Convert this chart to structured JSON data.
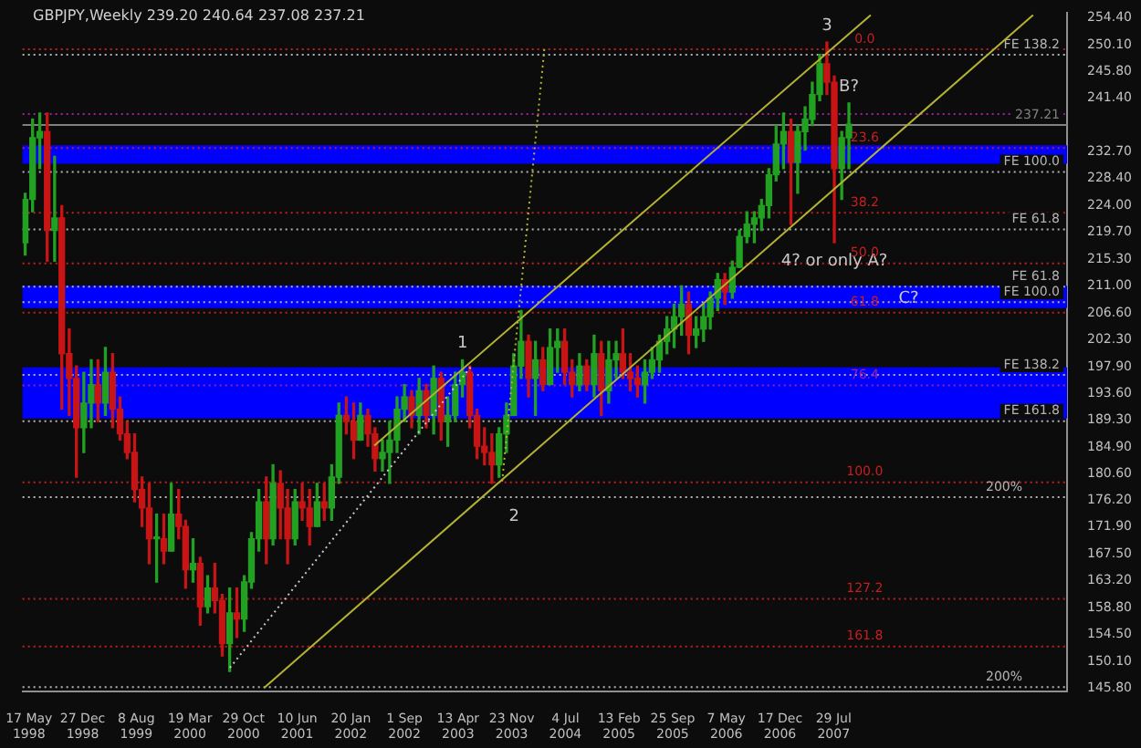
{
  "chart_data": {
    "type": "candlestick",
    "title": "GBPJPY,Weekly 239.20 240.64 237.08 237.21",
    "x": [
      "1998-05",
      "1998-06",
      "1998-07",
      "1998-08",
      "1998-09",
      "1998-10",
      "1998-11",
      "1998-12",
      "1999-01",
      "1999-02",
      "1999-03",
      "1999-04",
      "1999-05",
      "1999-06",
      "1999-07",
      "1999-08",
      "1999-09",
      "1999-10",
      "1999-11",
      "1999-12",
      "2000-01",
      "2000-02",
      "2000-03",
      "2000-04",
      "2000-05",
      "2000-06",
      "2000-07",
      "2000-08",
      "2000-09",
      "2000-10",
      "2000-11",
      "2000-12",
      "2001-01",
      "2001-02",
      "2001-03",
      "2001-04",
      "2001-05",
      "2001-06",
      "2001-07",
      "2001-08",
      "2001-09",
      "2001-10",
      "2001-11",
      "2001-12",
      "2002-01",
      "2002-02",
      "2002-03",
      "2002-04",
      "2002-05",
      "2002-06",
      "2002-07",
      "2002-08",
      "2002-09",
      "2002-10",
      "2002-11",
      "2002-12",
      "2003-01",
      "2003-02",
      "2003-03",
      "2003-04",
      "2003-05",
      "2003-06",
      "2003-07",
      "2003-08",
      "2003-09",
      "2003-10",
      "2003-11",
      "2003-12",
      "2004-01",
      "2004-02",
      "2004-03",
      "2004-04",
      "2004-05",
      "2004-06",
      "2004-07",
      "2004-08",
      "2004-09",
      "2004-10",
      "2004-11",
      "2004-12",
      "2005-01",
      "2005-02",
      "2005-03",
      "2005-04",
      "2005-05",
      "2005-06",
      "2005-07",
      "2005-08",
      "2005-09",
      "2005-10",
      "2005-11",
      "2005-12",
      "2006-01",
      "2006-02",
      "2006-03",
      "2006-04",
      "2006-05",
      "2006-06",
      "2006-07",
      "2006-08",
      "2006-09",
      "2006-10",
      "2006-11",
      "2006-12",
      "2007-01",
      "2007-02",
      "2007-03",
      "2007-04",
      "2007-05",
      "2007-06",
      "2007-07",
      "2007-08",
      "2007-09",
      "2007-10"
    ],
    "ohlc": [
      [
        218,
        226,
        216,
        225
      ],
      [
        225,
        238,
        223,
        235
      ],
      [
        235,
        239,
        230,
        236
      ],
      [
        236,
        239,
        215,
        220
      ],
      [
        220,
        232,
        215,
        222
      ],
      [
        222,
        224,
        191,
        200
      ],
      [
        200,
        204,
        190,
        196
      ],
      [
        196,
        198,
        180,
        188
      ],
      [
        188,
        197,
        184,
        192
      ],
      [
        192,
        199,
        188,
        195
      ],
      [
        195,
        199,
        189,
        192
      ],
      [
        192,
        201,
        190,
        197
      ],
      [
        197,
        200,
        188,
        191
      ],
      [
        191,
        193,
        186,
        187
      ],
      [
        187,
        189,
        183,
        184
      ],
      [
        184,
        187,
        176,
        178
      ],
      [
        178,
        180,
        172,
        175
      ],
      [
        175,
        179,
        166,
        170
      ],
      [
        170,
        174,
        163,
        170
      ],
      [
        170,
        174,
        166,
        168
      ],
      [
        168,
        179,
        168,
        174
      ],
      [
        174,
        178,
        170,
        172
      ],
      [
        172,
        173,
        162,
        165
      ],
      [
        165,
        170,
        163,
        166
      ],
      [
        166,
        167,
        156,
        159
      ],
      [
        159,
        164,
        158,
        162
      ],
      [
        162,
        166,
        158,
        160
      ],
      [
        160,
        161,
        151,
        153
      ],
      [
        153,
        162,
        148.5,
        158
      ],
      [
        158,
        162,
        154,
        157
      ],
      [
        157,
        164,
        155,
        163
      ],
      [
        163,
        171,
        162,
        170
      ],
      [
        170,
        178,
        168,
        176
      ],
      [
        176,
        180,
        166,
        170
      ],
      [
        170,
        182,
        169,
        179
      ],
      [
        179,
        181,
        170,
        175
      ],
      [
        175,
        178,
        166,
        170
      ],
      [
        170,
        178,
        169,
        176
      ],
      [
        176,
        179,
        173,
        175
      ],
      [
        175,
        178,
        169,
        172
      ],
      [
        172,
        179,
        172,
        176
      ],
      [
        176,
        179,
        173,
        175
      ],
      [
        175,
        182,
        173,
        180
      ],
      [
        180,
        192,
        179,
        190
      ],
      [
        190,
        193,
        187,
        189
      ],
      [
        189,
        192,
        183,
        186
      ],
      [
        186,
        192,
        186,
        190
      ],
      [
        190,
        191,
        185,
        187
      ],
      [
        187,
        188,
        181,
        183
      ],
      [
        183,
        186,
        181,
        184
      ],
      [
        184,
        189,
        179,
        186
      ],
      [
        186,
        193,
        184,
        191
      ],
      [
        191,
        195,
        189,
        193
      ],
      [
        193,
        194,
        188,
        190
      ],
      [
        190,
        196,
        187,
        194
      ],
      [
        194,
        195,
        188,
        190
      ],
      [
        190,
        198,
        187,
        196
      ],
      [
        196,
        197,
        186,
        189
      ],
      [
        189,
        193,
        185,
        190
      ],
      [
        190,
        197,
        189,
        195
      ],
      [
        195,
        199,
        193,
        197
      ],
      [
        197,
        198,
        188,
        190
      ],
      [
        190,
        191,
        183,
        185
      ],
      [
        185,
        188,
        182,
        184
      ],
      [
        184,
        187,
        179,
        182
      ],
      [
        182,
        188,
        180,
        187
      ],
      [
        187,
        192,
        184,
        190
      ],
      [
        190,
        200,
        190,
        198
      ],
      [
        198,
        207,
        196,
        202
      ],
      [
        202,
        203,
        193,
        196
      ],
      [
        196,
        202,
        190,
        199
      ],
      [
        199,
        201,
        194,
        195
      ],
      [
        195,
        204,
        195,
        201
      ],
      [
        201,
        204,
        197,
        202
      ],
      [
        202,
        204,
        195,
        197
      ],
      [
        197,
        199,
        193,
        195
      ],
      [
        195,
        200,
        194,
        198
      ],
      [
        198,
        199,
        194,
        195
      ],
      [
        195,
        203,
        193,
        200
      ],
      [
        200,
        202,
        190,
        194
      ],
      [
        194,
        202,
        192,
        199
      ],
      [
        199,
        202,
        196,
        200
      ],
      [
        200,
        204,
        196,
        197
      ],
      [
        197,
        200,
        194,
        196
      ],
      [
        196,
        198,
        193,
        195
      ],
      [
        195,
        199,
        192,
        197
      ],
      [
        197,
        201,
        196,
        199
      ],
      [
        199,
        203,
        197,
        202
      ],
      [
        202,
        206,
        200,
        204
      ],
      [
        204,
        208,
        201,
        206
      ],
      [
        206,
        211,
        203,
        208
      ],
      [
        208,
        210,
        200,
        203
      ],
      [
        203,
        206,
        201,
        204
      ],
      [
        204,
        208,
        202,
        206
      ],
      [
        206,
        210,
        204,
        209
      ],
      [
        209,
        213,
        207,
        212
      ],
      [
        212,
        213,
        208,
        210
      ],
      [
        210,
        215,
        209,
        214
      ],
      [
        214,
        220,
        214,
        219
      ],
      [
        219,
        223,
        218,
        221
      ],
      [
        221,
        223,
        218,
        222
      ],
      [
        222,
        225,
        220,
        224
      ],
      [
        224,
        230,
        222,
        229
      ],
      [
        229,
        237,
        228,
        234
      ],
      [
        234,
        239,
        230,
        236
      ],
      [
        236,
        238,
        221,
        231
      ],
      [
        231,
        237,
        226,
        236
      ],
      [
        236,
        240,
        233,
        238
      ],
      [
        238,
        244,
        237,
        242
      ],
      [
        242,
        248.5,
        241,
        247
      ],
      [
        247,
        250.5,
        242,
        244
      ],
      [
        244,
        245,
        218,
        230
      ],
      [
        230,
        236,
        225,
        235
      ],
      [
        235,
        240.64,
        230,
        237.21
      ]
    ],
    "colors": [
      "#22a022",
      "#22a022",
      "#22a022",
      "#c81414",
      "#22a022",
      "#c81414",
      "#c81414",
      "#c81414",
      "#22a022",
      "#22a022",
      "#c81414",
      "#22a022",
      "#c81414",
      "#c81414",
      "#c81414",
      "#c81414",
      "#c81414",
      "#c81414",
      "#22a022",
      "#c81414",
      "#22a022",
      "#c81414",
      "#c81414",
      "#22a022",
      "#c81414",
      "#22a022",
      "#c81414",
      "#c81414",
      "#22a022",
      "#c81414",
      "#22a022",
      "#22a022",
      "#22a022",
      "#c81414",
      "#22a022",
      "#c81414",
      "#c81414",
      "#22a022",
      "#c81414",
      "#c81414",
      "#22a022",
      "#c81414",
      "#22a022",
      "#22a022",
      "#c81414",
      "#c81414",
      "#22a022",
      "#c81414",
      "#c81414",
      "#22a022",
      "#22a022",
      "#22a022",
      "#22a022",
      "#c81414",
      "#22a022",
      "#c81414",
      "#22a022",
      "#c81414",
      "#22a022",
      "#22a022",
      "#22a022",
      "#c81414",
      "#c81414",
      "#c81414",
      "#c81414",
      "#22a022",
      "#22a022",
      "#22a022",
      "#22a022",
      "#c81414",
      "#22a022",
      "#c81414",
      "#22a022",
      "#22a022",
      "#c81414",
      "#c81414",
      "#22a022",
      "#c81414",
      "#22a022",
      "#c81414",
      "#22a022",
      "#22a022",
      "#c81414",
      "#c81414",
      "#c81414",
      "#22a022",
      "#22a022",
      "#22a022",
      "#22a022",
      "#22a022",
      "#22a022",
      "#c81414",
      "#22a022",
      "#22a022",
      "#22a022",
      "#22a022",
      "#c81414",
      "#22a022",
      "#22a022",
      "#22a022",
      "#22a022",
      "#22a022",
      "#22a022",
      "#22a022",
      "#22a022",
      "#c81414",
      "#22a022",
      "#22a022",
      "#22a022",
      "#22a022",
      "#c81414",
      "#c81414",
      "#22a022",
      "#22a022"
    ],
    "series": [
      {
        "type": "line",
        "color": "#b4b432",
        "line_style": "solid",
        "x": [
          "2002-04-28",
          "2007-12-31"
        ],
        "values": [
          185.1,
          254.9
        ]
      },
      {
        "type": "line",
        "color": "#b4b432",
        "line_style": "solid",
        "x": [
          "2001-01-22",
          "2009-11-08"
        ],
        "values": [
          145.8,
          254.9
        ]
      },
      {
        "type": "line",
        "color": "#c8c8c8",
        "line_style": "dotted",
        "x": [
          "2000-09-02",
          "2003-06-08"
        ],
        "values": [
          149.1,
          198.0
        ]
      },
      {
        "type": "line",
        "color": "#b4b432",
        "line_style": "dotted",
        "x": [
          "2003-10-14",
          "2004-04-08"
        ],
        "values": [
          179.3,
          249.7
        ]
      }
    ],
    "xlim": [
      "1998-04-20",
      "2010-03-30"
    ],
    "xticks": [
      {
        "value": "1998-05-17",
        "label": "17 May 1998"
      },
      {
        "value": "1998-12-27",
        "label": "27 Dec 1998"
      },
      {
        "value": "1999-08-08",
        "label": "8 Aug 1999"
      },
      {
        "value": "2000-03-19",
        "label": "19 Mar 2000"
      },
      {
        "value": "2000-10-29",
        "label": "29 Oct 2000"
      },
      {
        "value": "2001-06-10",
        "label": "10 Jun 2001"
      },
      {
        "value": "2002-01-20",
        "label": "20 Jan 2002"
      },
      {
        "value": "2002-09-01",
        "label": "1 Sep 2002"
      },
      {
        "value": "2003-04-13",
        "label": "13 Apr 2003"
      },
      {
        "value": "2003-11-23",
        "label": "23 Nov 2003"
      },
      {
        "value": "2004-07-04",
        "label": "4 Jul 2004"
      },
      {
        "value": "2005-02-13",
        "label": "13 Feb 2005"
      },
      {
        "value": "2005-09-25",
        "label": "25 Sep 2005"
      },
      {
        "value": "2006-05-07",
        "label": "7 May 2006"
      },
      {
        "value": "2006-12-17",
        "label": "17 Dec 2006"
      },
      {
        "value": "2007-07-29",
        "label": "29 Jul 2007"
      }
    ],
    "ylim": [
      145.2,
      255.2
    ],
    "yticks": [
      {
        "value": 145.8,
        "label": "145.80"
      },
      {
        "value": 150.1,
        "label": "150.10"
      },
      {
        "value": 154.5,
        "label": "154.50"
      },
      {
        "value": 158.8,
        "label": "158.80"
      },
      {
        "value": 163.2,
        "label": "163.20"
      },
      {
        "value": 167.5,
        "label": "167.50"
      },
      {
        "value": 171.9,
        "label": "171.90"
      },
      {
        "value": 176.2,
        "label": "176.20"
      },
      {
        "value": 180.6,
        "label": "180.60"
      },
      {
        "value": 184.9,
        "label": "184.90"
      },
      {
        "value": 189.3,
        "label": "189.30"
      },
      {
        "value": 193.6,
        "label": "193.60"
      },
      {
        "value": 197.9,
        "label": "197.90"
      },
      {
        "value": 202.3,
        "label": "202.30"
      },
      {
        "value": 206.6,
        "label": "206.60"
      },
      {
        "value": 211.0,
        "label": "211.00"
      },
      {
        "value": 215.3,
        "label": "215.30"
      },
      {
        "value": 219.7,
        "label": "219.70"
      },
      {
        "value": 224.0,
        "label": "224.00"
      },
      {
        "value": 228.4,
        "label": "228.40"
      },
      {
        "value": 232.7,
        "label": "232.70"
      },
      {
        "value": 237.0,
        "label": null
      },
      {
        "value": 241.4,
        "label": "241.40"
      },
      {
        "value": 245.8,
        "label": "245.80"
      },
      {
        "value": 250.1,
        "label": "250.10"
      },
      {
        "value": 254.4,
        "label": "254.40"
      }
    ],
    "grid": false,
    "legend": false,
    "bands": [
      {
        "axis": "y",
        "from": 189.5,
        "to": 197.8,
        "color": "#0000ff"
      },
      {
        "axis": "y",
        "from": 207.4,
        "to": 211.0,
        "color": "#0000ff"
      },
      {
        "axis": "y",
        "from": 230.8,
        "to": 233.8,
        "color": "#0000ff"
      }
    ],
    "ref_lines": [
      {
        "axis": "y",
        "value": 249.5,
        "color": "#c81e1e",
        "line_style": "dotted"
      },
      {
        "axis": "y",
        "value": 248.6,
        "label": "FE 138.2",
        "color": "#b4b4b4",
        "line_style": "dotted"
      },
      {
        "axis": "y",
        "value": 239.0,
        "color": "#a020a0",
        "line_style": "dotted"
      },
      {
        "axis": "y",
        "value": 237.21,
        "label": "237.21",
        "color": "#808080",
        "line_style": "solid"
      },
      {
        "axis": "y",
        "value": 233.5,
        "color": "#c81e1e",
        "line_style": "dotted"
      },
      {
        "axis": "y",
        "value": 229.6,
        "label": "FE 100.0",
        "color": "#b4b4b4",
        "line_style": "dotted"
      },
      {
        "axis": "y",
        "value": 223.0,
        "color": "#c81e1e",
        "line_style": "dotted"
      },
      {
        "axis": "y",
        "value": 220.3,
        "label": "FE 61.8",
        "color": "#b4b4b4",
        "line_style": "dotted"
      },
      {
        "axis": "y",
        "value": 214.8,
        "color": "#c81e1e",
        "line_style": "dotted"
      },
      {
        "axis": "y",
        "value": 211.0,
        "label": "FE 61.8",
        "color": "#b4b4b4",
        "line_style": "dotted"
      },
      {
        "axis": "y",
        "value": 208.5,
        "label": "FE 100.0",
        "color": "#b4b4b4",
        "line_style": "dotted"
      },
      {
        "axis": "y",
        "value": 206.8,
        "color": "#c81e1e",
        "line_style": "dotted"
      },
      {
        "axis": "y",
        "value": 196.7,
        "label": "FE 138.2",
        "color": "#b4b4b4",
        "line_style": "dotted"
      },
      {
        "axis": "y",
        "value": 195.0,
        "color": "#a020a0",
        "line_style": "dotted"
      },
      {
        "axis": "y",
        "value": 189.2,
        "label": "FE 161.8",
        "color": "#b4b4b4",
        "line_style": "dotted"
      },
      {
        "axis": "y",
        "value": 179.3,
        "color": "#c81e1e",
        "line_style": "dotted"
      },
      {
        "axis": "y",
        "value": 176.9,
        "color": "#b4b4b4",
        "line_style": "dotted"
      },
      {
        "axis": "y",
        "value": 160.4,
        "color": "#c81e1e",
        "line_style": "dotted"
      },
      {
        "axis": "y",
        "value": 152.7,
        "color": "#c81e1e",
        "line_style": "dotted"
      },
      {
        "axis": "y",
        "value": 146.1,
        "color": "#b4b4b4",
        "line_style": "dotted"
      }
    ],
    "annotations": [
      {
        "text": "1",
        "x": "2003-05",
        "y": 199
      },
      {
        "text": "2",
        "x": "2003-12-03",
        "y": 176.6
      },
      {
        "text": "3",
        "x": "2007-07",
        "y": 250.5
      },
      {
        "text": "B?",
        "x": "2007-10",
        "y": 240.64
      },
      {
        "text": "4? or only A?",
        "x": "2007-08",
        "y": 218
      },
      {
        "text": "0.0",
        "x": "2007-12-06",
        "y": 249.5
      },
      {
        "text": "23.6",
        "x": "2007-12-06",
        "y": 233.5
      },
      {
        "text": "38.2",
        "x": "2007-12-06",
        "y": 223.0
      },
      {
        "text": "50.0",
        "x": "2007-12-06",
        "y": 214.8
      },
      {
        "text": "61.8",
        "x": "2007-12-06",
        "y": 206.8
      },
      {
        "text": "76.4",
        "x": "2007-12-06",
        "y": 195.0
      },
      {
        "text": "100.0",
        "x": "2007-12-06",
        "y": 179.3
      },
      {
        "text": "200%",
        "x": "2009-07-10",
        "y": 176.9
      },
      {
        "text": "127.2",
        "x": "2007-12-06",
        "y": 160.4
      },
      {
        "text": "161.8",
        "x": "2007-12-06",
        "y": 152.7
      },
      {
        "text": "200%",
        "x": "2009-07-10",
        "y": 146.1
      },
      {
        "text": "C?",
        "x": "2008-06-07",
        "y": 209
      }
    ]
  }
}
